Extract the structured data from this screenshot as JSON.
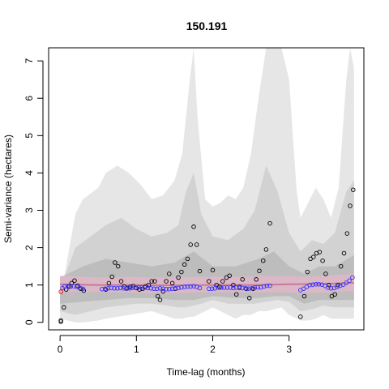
{
  "chart_data": {
    "type": "scatter",
    "title": "150.191",
    "xlabel": "Time-lag (months)",
    "ylabel": "Semi-variance (hectares)",
    "xlim": [
      -0.15,
      3.98
    ],
    "ylim": [
      -0.2,
      7.35
    ],
    "xticks": [
      0,
      1,
      2,
      3
    ],
    "yticks": [
      0,
      1,
      2,
      3,
      4,
      5,
      6,
      7
    ],
    "colors": {
      "outer_band": "#e6e6e6",
      "mid_band": "#d2d2d2",
      "inner_band": "#bdbdbd",
      "model_band": "#e0b7c8",
      "model_line": "#c9789c",
      "empirical_points": "#000000",
      "model_points": "#3333ff",
      "origin_point": "#ff0000",
      "frame": "#000000"
    },
    "empirical": [
      [
        0.01,
        0.05
      ],
      [
        0.01,
        0.02
      ],
      [
        0.05,
        0.4
      ],
      [
        0.08,
        0.88
      ],
      [
        0.12,
        0.96
      ],
      [
        0.15,
        1.05
      ],
      [
        0.19,
        1.12
      ],
      [
        0.23,
        0.98
      ],
      [
        0.27,
        0.9
      ],
      [
        0.31,
        0.85
      ],
      [
        0.6,
        0.88
      ],
      [
        0.64,
        1.05
      ],
      [
        0.68,
        1.22
      ],
      [
        0.72,
        1.6
      ],
      [
        0.76,
        1.5
      ],
      [
        0.8,
        1.1
      ],
      [
        0.84,
        0.96
      ],
      [
        0.88,
        0.92
      ],
      [
        0.92,
        0.95
      ],
      [
        0.96,
        0.97
      ],
      [
        1.0,
        0.92
      ],
      [
        1.04,
        0.88
      ],
      [
        1.08,
        0.9
      ],
      [
        1.12,
        0.96
      ],
      [
        1.16,
        1.0
      ],
      [
        1.2,
        1.1
      ],
      [
        1.24,
        1.1
      ],
      [
        1.28,
        0.7
      ],
      [
        1.31,
        0.6
      ],
      [
        1.35,
        0.83
      ],
      [
        1.39,
        1.1
      ],
      [
        1.43,
        1.3
      ],
      [
        1.47,
        1.05
      ],
      [
        1.51,
        0.9
      ],
      [
        1.55,
        1.2
      ],
      [
        1.59,
        1.35
      ],
      [
        1.63,
        1.55
      ],
      [
        1.67,
        1.7
      ],
      [
        1.71,
        2.08
      ],
      [
        1.75,
        2.56
      ],
      [
        1.79,
        2.08
      ],
      [
        1.83,
        1.37
      ],
      [
        1.95,
        1.1
      ],
      [
        2.0,
        1.4
      ],
      [
        2.05,
        1.0
      ],
      [
        2.09,
        0.95
      ],
      [
        2.13,
        1.1
      ],
      [
        2.18,
        1.2
      ],
      [
        2.22,
        1.25
      ],
      [
        2.27,
        1.0
      ],
      [
        2.31,
        0.75
      ],
      [
        2.35,
        0.95
      ],
      [
        2.39,
        1.15
      ],
      [
        2.44,
        0.9
      ],
      [
        2.48,
        0.65
      ],
      [
        2.53,
        0.9
      ],
      [
        2.57,
        1.15
      ],
      [
        2.61,
        1.38
      ],
      [
        2.66,
        1.65
      ],
      [
        2.7,
        1.95
      ],
      [
        2.75,
        2.65
      ],
      [
        3.15,
        0.15
      ],
      [
        3.2,
        0.7
      ],
      [
        3.24,
        1.35
      ],
      [
        3.28,
        1.7
      ],
      [
        3.32,
        1.75
      ],
      [
        3.36,
        1.85
      ],
      [
        3.4,
        1.88
      ],
      [
        3.44,
        1.65
      ],
      [
        3.48,
        1.3
      ],
      [
        3.52,
        1.0
      ],
      [
        3.56,
        0.7
      ],
      [
        3.6,
        0.75
      ],
      [
        3.64,
        1.0
      ],
      [
        3.68,
        1.5
      ],
      [
        3.72,
        1.85
      ],
      [
        3.76,
        2.38
      ],
      [
        3.8,
        3.12
      ],
      [
        3.84,
        3.55
      ]
    ],
    "model": [
      [
        0.03,
        0.92
      ],
      [
        0.06,
        0.96
      ],
      [
        0.1,
        0.97
      ],
      [
        0.14,
        0.96
      ],
      [
        0.18,
        0.97
      ],
      [
        0.22,
        0.95
      ],
      [
        0.26,
        0.92
      ],
      [
        0.3,
        0.9
      ],
      [
        0.55,
        0.89
      ],
      [
        0.59,
        0.9
      ],
      [
        0.63,
        0.91
      ],
      [
        0.67,
        0.92
      ],
      [
        0.71,
        0.91
      ],
      [
        0.75,
        0.91
      ],
      [
        0.79,
        0.92
      ],
      [
        0.83,
        0.91
      ],
      [
        0.87,
        0.9
      ],
      [
        0.91,
        0.91
      ],
      [
        0.95,
        0.92
      ],
      [
        0.99,
        0.93
      ],
      [
        1.03,
        0.94
      ],
      [
        1.07,
        0.94
      ],
      [
        1.11,
        0.93
      ],
      [
        1.15,
        0.92
      ],
      [
        1.19,
        0.91
      ],
      [
        1.23,
        0.9
      ],
      [
        1.27,
        0.9
      ],
      [
        1.31,
        0.91
      ],
      [
        1.35,
        0.9
      ],
      [
        1.39,
        0.89
      ],
      [
        1.43,
        0.89
      ],
      [
        1.47,
        0.9
      ],
      [
        1.51,
        0.91
      ],
      [
        1.55,
        0.92
      ],
      [
        1.59,
        0.94
      ],
      [
        1.63,
        0.95
      ],
      [
        1.67,
        0.96
      ],
      [
        1.71,
        0.96
      ],
      [
        1.75,
        0.97
      ],
      [
        1.79,
        0.95
      ],
      [
        1.83,
        0.92
      ],
      [
        1.95,
        0.9
      ],
      [
        1.99,
        0.9
      ],
      [
        2.03,
        0.91
      ],
      [
        2.07,
        0.93
      ],
      [
        2.11,
        0.93
      ],
      [
        2.15,
        0.93
      ],
      [
        2.19,
        0.93
      ],
      [
        2.23,
        0.93
      ],
      [
        2.27,
        0.92
      ],
      [
        2.31,
        0.93
      ],
      [
        2.35,
        0.92
      ],
      [
        2.39,
        0.92
      ],
      [
        2.43,
        0.91
      ],
      [
        2.47,
        0.9
      ],
      [
        2.51,
        0.91
      ],
      [
        2.55,
        0.93
      ],
      [
        2.59,
        0.94
      ],
      [
        2.63,
        0.94
      ],
      [
        2.67,
        0.96
      ],
      [
        2.71,
        0.98
      ],
      [
        2.75,
        0.98
      ],
      [
        3.15,
        0.86
      ],
      [
        3.19,
        0.9
      ],
      [
        3.23,
        0.95
      ],
      [
        3.27,
        1.0
      ],
      [
        3.31,
        1.01
      ],
      [
        3.35,
        1.02
      ],
      [
        3.39,
        1.02
      ],
      [
        3.43,
        1.01
      ],
      [
        3.47,
        0.98
      ],
      [
        3.51,
        0.93
      ],
      [
        3.55,
        0.91
      ],
      [
        3.59,
        0.92
      ],
      [
        3.63,
        0.95
      ],
      [
        3.67,
        0.98
      ],
      [
        3.71,
        1.01
      ],
      [
        3.75,
        1.06
      ],
      [
        3.79,
        1.12
      ],
      [
        3.83,
        1.2
      ]
    ],
    "origin_point": [
      0.01,
      0.82
    ],
    "envelope_outer": [
      [
        0.0,
        0.1,
        0.6
      ],
      [
        0.2,
        0.0,
        2.9
      ],
      [
        0.3,
        0.0,
        3.3
      ],
      [
        0.5,
        0.05,
        3.6
      ],
      [
        0.6,
        0.1,
        4.0
      ],
      [
        0.75,
        0.15,
        4.2
      ],
      [
        0.9,
        0.2,
        4.0
      ],
      [
        1.05,
        0.25,
        3.7
      ],
      [
        1.2,
        0.3,
        3.3
      ],
      [
        1.35,
        0.2,
        3.4
      ],
      [
        1.5,
        0.1,
        3.8
      ],
      [
        1.6,
        0.1,
        4.5
      ],
      [
        1.7,
        0.15,
        6.5
      ],
      [
        1.75,
        0.15,
        7.4
      ],
      [
        1.8,
        0.2,
        5.5
      ],
      [
        1.9,
        0.3,
        3.3
      ],
      [
        2.0,
        0.4,
        3.1
      ],
      [
        2.1,
        0.3,
        3.2
      ],
      [
        2.2,
        0.2,
        3.4
      ],
      [
        2.3,
        0.1,
        3.3
      ],
      [
        2.4,
        0.2,
        3.6
      ],
      [
        2.5,
        0.2,
        4.5
      ],
      [
        2.6,
        0.3,
        6.0
      ],
      [
        2.7,
        0.3,
        7.4
      ],
      [
        2.9,
        0.4,
        7.4
      ],
      [
        3.0,
        0.2,
        6.5
      ],
      [
        3.1,
        0.1,
        3.5
      ],
      [
        3.15,
        0.05,
        2.8
      ],
      [
        3.25,
        0.05,
        3.2
      ],
      [
        3.35,
        0.1,
        3.6
      ],
      [
        3.45,
        0.2,
        3.3
      ],
      [
        3.55,
        0.1,
        2.8
      ],
      [
        3.65,
        0.1,
        3.6
      ],
      [
        3.75,
        0.1,
        6.5
      ],
      [
        3.8,
        0.1,
        7.4
      ],
      [
        3.85,
        0.1,
        6.8
      ]
    ],
    "envelope_mid": [
      [
        0.0,
        0.3,
        0.9
      ],
      [
        0.2,
        0.2,
        2.0
      ],
      [
        0.4,
        0.3,
        2.3
      ],
      [
        0.6,
        0.4,
        2.6
      ],
      [
        0.8,
        0.45,
        2.8
      ],
      [
        1.0,
        0.5,
        2.5
      ],
      [
        1.2,
        0.5,
        2.3
      ],
      [
        1.4,
        0.45,
        2.4
      ],
      [
        1.55,
        0.4,
        2.6
      ],
      [
        1.65,
        0.4,
        3.5
      ],
      [
        1.75,
        0.45,
        4.0
      ],
      [
        1.85,
        0.5,
        2.9
      ],
      [
        2.0,
        0.6,
        2.3
      ],
      [
        2.2,
        0.5,
        2.2
      ],
      [
        2.4,
        0.5,
        2.5
      ],
      [
        2.55,
        0.5,
        3.0
      ],
      [
        2.7,
        0.55,
        4.2
      ],
      [
        2.85,
        0.6,
        3.5
      ],
      [
        3.0,
        0.55,
        2.4
      ],
      [
        3.15,
        0.3,
        1.9
      ],
      [
        3.3,
        0.35,
        2.2
      ],
      [
        3.45,
        0.45,
        2.1
      ],
      [
        3.6,
        0.4,
        2.4
      ],
      [
        3.75,
        0.4,
        3.5
      ],
      [
        3.85,
        0.4,
        3.8
      ]
    ],
    "envelope_inner": [
      [
        0.0,
        0.5,
        1.2
      ],
      [
        0.3,
        0.55,
        1.5
      ],
      [
        0.6,
        0.6,
        1.7
      ],
      [
        0.9,
        0.65,
        1.6
      ],
      [
        1.2,
        0.65,
        1.5
      ],
      [
        1.5,
        0.6,
        1.6
      ],
      [
        1.75,
        0.6,
        1.9
      ],
      [
        2.0,
        0.7,
        1.5
      ],
      [
        2.3,
        0.65,
        1.5
      ],
      [
        2.6,
        0.65,
        1.7
      ],
      [
        2.8,
        0.7,
        1.9
      ],
      [
        3.0,
        0.7,
        1.5
      ],
      [
        3.2,
        0.5,
        1.3
      ],
      [
        3.4,
        0.6,
        1.5
      ],
      [
        3.6,
        0.6,
        1.5
      ],
      [
        3.85,
        0.6,
        1.8
      ]
    ],
    "model_band": [
      [
        0.0,
        0.8,
        1.25
      ],
      [
        0.3,
        0.82,
        1.22
      ],
      [
        0.6,
        0.8,
        1.2
      ],
      [
        0.9,
        0.8,
        1.22
      ],
      [
        1.2,
        0.78,
        1.2
      ],
      [
        1.5,
        0.78,
        1.2
      ],
      [
        1.8,
        0.8,
        1.22
      ],
      [
        2.1,
        0.8,
        1.22
      ],
      [
        2.4,
        0.8,
        1.22
      ],
      [
        2.7,
        0.8,
        1.25
      ],
      [
        3.0,
        0.8,
        1.25
      ],
      [
        3.2,
        0.78,
        1.22
      ],
      [
        3.5,
        0.8,
        1.25
      ],
      [
        3.85,
        0.85,
        1.3
      ]
    ],
    "model_line": [
      [
        0.0,
        1.02
      ],
      [
        0.5,
        1.0
      ],
      [
        1.0,
        1.0
      ],
      [
        1.5,
        0.99
      ],
      [
        2.0,
        1.0
      ],
      [
        2.5,
        1.0
      ],
      [
        3.0,
        1.02
      ],
      [
        3.5,
        1.03
      ],
      [
        3.85,
        1.06
      ]
    ]
  }
}
